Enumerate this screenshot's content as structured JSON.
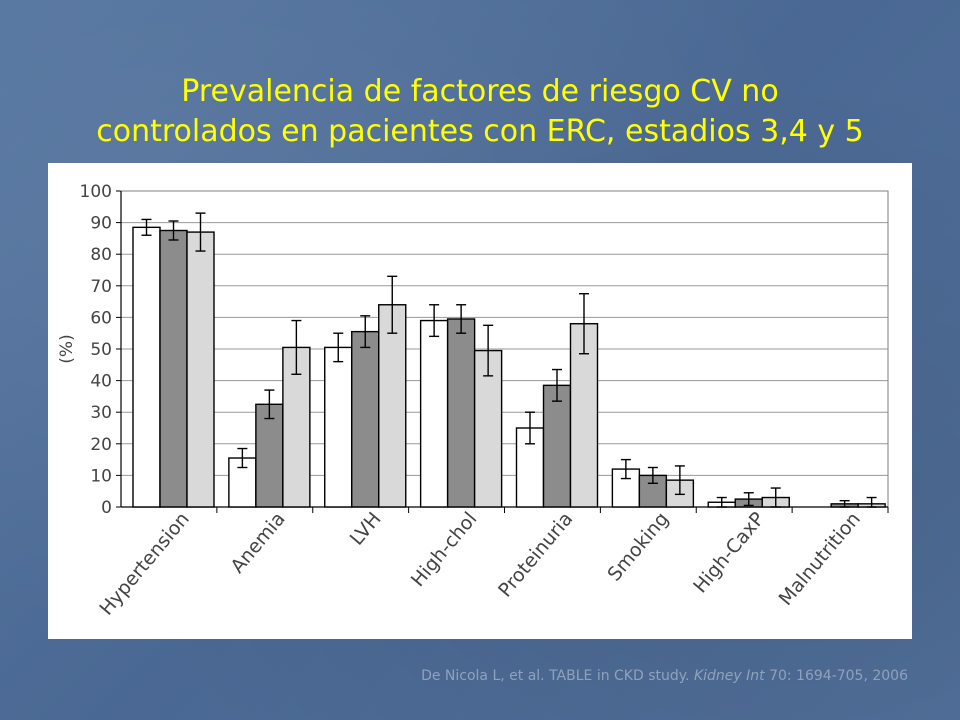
{
  "title": {
    "line1": "Prevalencia de factores de riesgo CV no",
    "line2": "controlados en pacientes con ERC, estadios 3,4 y 5"
  },
  "citation": {
    "before": "De Nicola L, et al. TABLE in CKD study.",
    "journal": "Kidney Int",
    "after": "70: 1694-705, 2006"
  },
  "chart_data": {
    "type": "bar",
    "ylabel": "(%)",
    "ylim": [
      0,
      100
    ],
    "yticks": [
      "0",
      "10",
      "20",
      "30",
      "40",
      "50",
      "60",
      "70",
      "80",
      "90",
      "100"
    ],
    "grid": true,
    "categories": [
      "Hypertension",
      "Anemia",
      "LVH",
      "High-chol",
      "Proteinuria",
      "Smoking",
      "High-CaxP",
      "Malnutrition"
    ],
    "series": [
      {
        "values": [
          88.5,
          15.5,
          50.5,
          59,
          25,
          12,
          1.5,
          0
        ],
        "errors": [
          2.5,
          3,
          4.5,
          5,
          5,
          3,
          1.5,
          0
        ],
        "color": "#ffffff"
      },
      {
        "values": [
          87.5,
          32.5,
          55.5,
          59.5,
          38.5,
          10,
          2.5,
          1
        ],
        "errors": [
          3,
          4.5,
          5,
          4.5,
          5,
          2.5,
          2,
          1
        ],
        "color": "#8c8c8c"
      },
      {
        "values": [
          87,
          50.5,
          64,
          49.5,
          58,
          8.5,
          3,
          1
        ],
        "errors": [
          6,
          8.5,
          9,
          8,
          9.5,
          4.5,
          3,
          2
        ],
        "color": "#d9d9d9"
      }
    ],
    "colors": {
      "bar_stroke": "#000000",
      "grid": "#999999",
      "text": "#444444"
    }
  }
}
